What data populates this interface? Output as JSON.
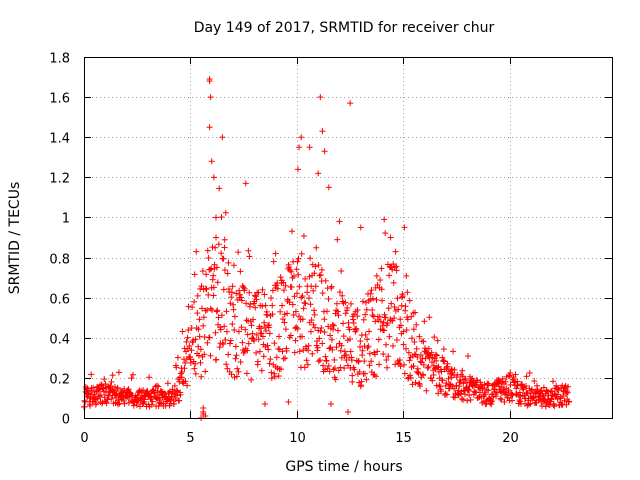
{
  "chart_data": {
    "type": "scatter",
    "title": "Day 149 of 2017, SRMTID for receiver chur",
    "xlabel": "GPS time / hours",
    "ylabel": "SRMTID / TECUs",
    "xlim": [
      0,
      24.8
    ],
    "ylim": [
      0,
      1.8
    ],
    "x_ticks": [
      "0",
      "5",
      "10",
      "15",
      "20"
    ],
    "y_ticks": [
      "0",
      "0.2",
      "0.4",
      "0.6",
      "0.8",
      "1",
      "1.2",
      "1.4",
      "1.6",
      "1.8"
    ],
    "marker": "+",
    "color": "#ff0000",
    "grid": true,
    "envelope": {
      "hours": [
        0,
        1,
        2,
        3,
        4,
        4.5,
        5,
        5.5,
        6,
        6.5,
        7,
        8,
        9,
        10,
        11,
        12,
        13,
        14,
        15,
        15.5,
        16,
        17,
        18,
        19,
        20,
        21,
        22,
        22.8
      ],
      "typical_values": [
        0.1,
        0.12,
        0.1,
        0.1,
        0.09,
        0.15,
        0.35,
        0.45,
        0.6,
        0.55,
        0.45,
        0.4,
        0.45,
        0.55,
        0.5,
        0.4,
        0.35,
        0.5,
        0.5,
        0.35,
        0.25,
        0.2,
        0.15,
        0.12,
        0.15,
        0.1,
        0.1,
        0.12
      ]
    },
    "series": [
      {
        "name": "SRMTID",
        "x": [
          5.5,
          5.6,
          5.7,
          5.9,
          5.9,
          5.95,
          5.9,
          6.0,
          6.1,
          6.2,
          6.5,
          7.6,
          9.0,
          10.05,
          10.1,
          10.2,
          10.6,
          11.0,
          11.1,
          11.2,
          11.3,
          11.5,
          12.0,
          12.5,
          13.0,
          14.1,
          14.4,
          5.6,
          5.6,
          12.4,
          12.6,
          6.2,
          6.6,
          8.5,
          9.6,
          11.6
        ],
        "y": [
          0.0,
          0.05,
          0.01,
          1.69,
          1.68,
          1.6,
          1.45,
          1.28,
          1.2,
          1.0,
          1.4,
          1.17,
          0.82,
          1.24,
          1.35,
          1.4,
          1.35,
          1.22,
          1.6,
          1.43,
          1.33,
          1.15,
          0.98,
          1.57,
          0.95,
          0.99,
          0.9,
          0.03,
          0.02,
          0.03,
          0.18,
          0.9,
          0.85,
          0.07,
          0.08,
          0.07
        ]
      }
    ]
  }
}
